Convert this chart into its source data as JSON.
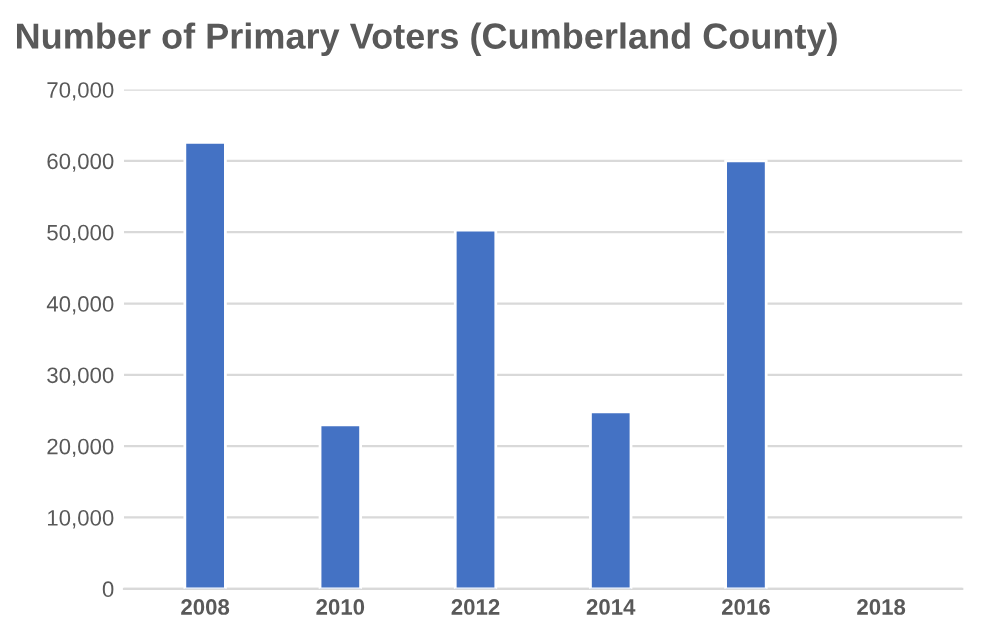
{
  "chart_data": {
    "type": "bar",
    "title": "Number of Primary Voters (Cumberland County)",
    "categories": [
      "2008",
      "2010",
      "2012",
      "2014",
      "2016",
      "2018"
    ],
    "values": [
      62600,
      23000,
      50300,
      24800,
      60000,
      null
    ],
    "color": "#4472c4",
    "ylim": [
      0,
      70000
    ],
    "yticks": [
      {
        "value": 0,
        "label": "0"
      },
      {
        "value": 10000,
        "label": "10,000"
      },
      {
        "value": 20000,
        "label": "20,000"
      },
      {
        "value": 30000,
        "label": "30,000"
      },
      {
        "value": 40000,
        "label": "40,000"
      },
      {
        "value": 50000,
        "label": "50,000"
      },
      {
        "value": 60000,
        "label": "60,000"
      },
      {
        "value": 70000,
        "label": "70,000"
      }
    ],
    "grid": "y"
  }
}
